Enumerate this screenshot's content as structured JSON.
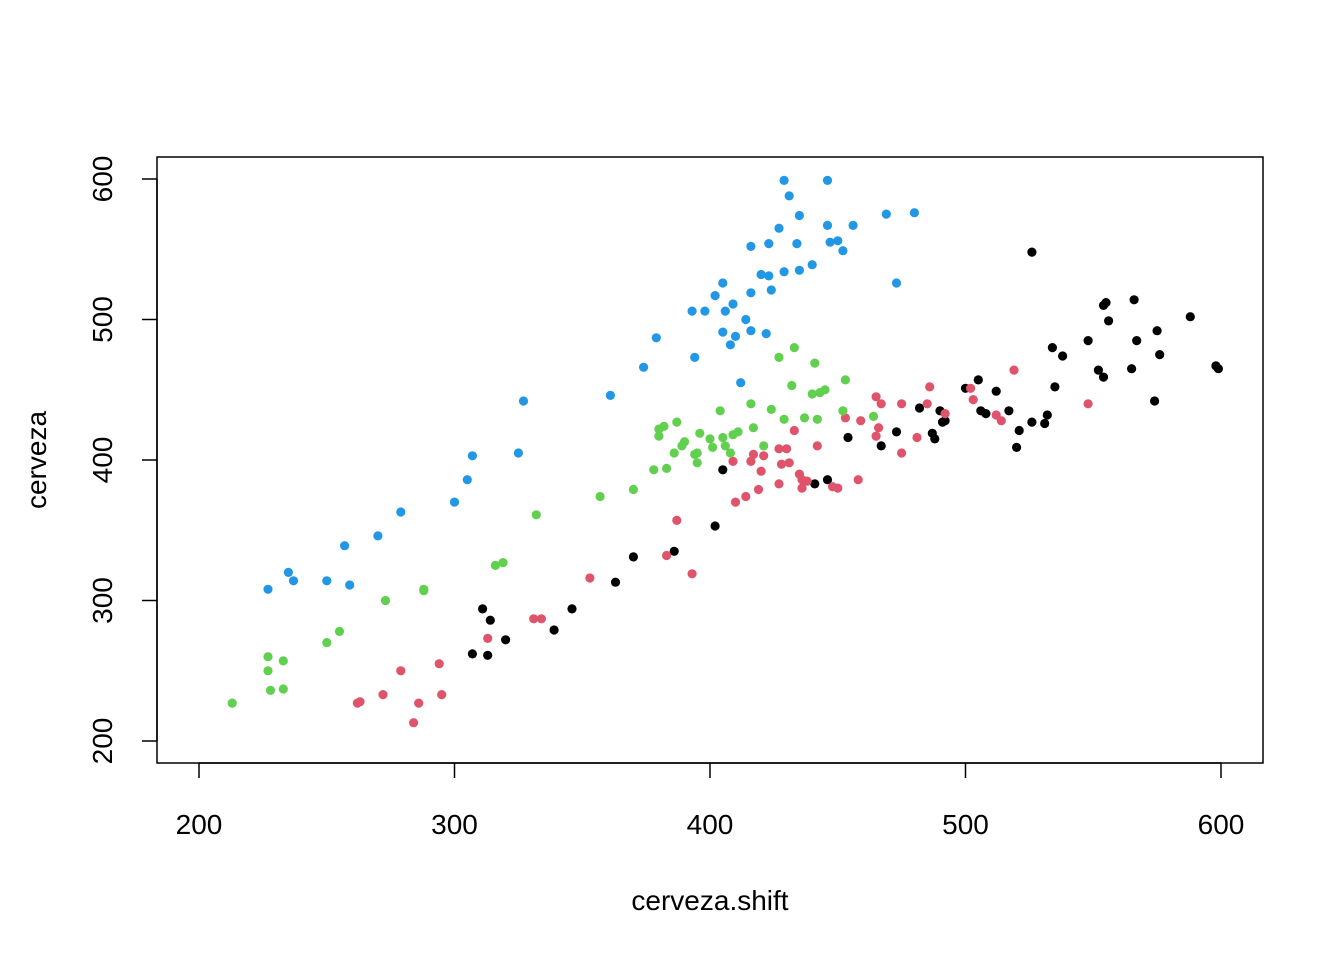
{
  "chart_data": {
    "type": "scatter",
    "title": "",
    "xlabel": "cerveza.shift",
    "ylabel": "cerveza",
    "xlim": [
      184,
      1618
    ],
    "ylim": [
      184,
      1620
    ],
    "grid": false,
    "legend": "none",
    "x_ticks": [
      200,
      300,
      400,
      500,
      600
    ],
    "y_ticks": [
      200,
      300,
      400,
      500,
      600
    ],
    "x_tick_labels": [
      "200",
      "300",
      "400",
      "500",
      "600"
    ],
    "y_tick_labels": [
      "200",
      "300",
      "400",
      "500",
      "600"
    ],
    "series": [
      {
        "color": "#000000",
        "points": [
          [
            311,
            294
          ],
          [
            314,
            286
          ],
          [
            307,
            262
          ],
          [
            313,
            261
          ],
          [
            320,
            272
          ],
          [
            339,
            279
          ],
          [
            346,
            294
          ],
          [
            363,
            313
          ],
          [
            370,
            331
          ],
          [
            386,
            335
          ],
          [
            402,
            353
          ],
          [
            405,
            393
          ],
          [
            441,
            383
          ],
          [
            446,
            386
          ],
          [
            454,
            416
          ],
          [
            467,
            410
          ],
          [
            473,
            420
          ],
          [
            482,
            437
          ],
          [
            487,
            419
          ],
          [
            488,
            415
          ],
          [
            490,
            435
          ],
          [
            491,
            427
          ],
          [
            492,
            428
          ],
          [
            500,
            451
          ],
          [
            505,
            457
          ],
          [
            506,
            435
          ],
          [
            508,
            433
          ],
          [
            512,
            449
          ],
          [
            517,
            435
          ],
          [
            520,
            409
          ],
          [
            521,
            421
          ],
          [
            526,
            427
          ],
          [
            526,
            548
          ],
          [
            531,
            426
          ],
          [
            532,
            432
          ],
          [
            534,
            480
          ],
          [
            535,
            452
          ],
          [
            538,
            474
          ],
          [
            548,
            485
          ],
          [
            552,
            464
          ],
          [
            554,
            459
          ],
          [
            554,
            510
          ],
          [
            555,
            512
          ],
          [
            556,
            499
          ],
          [
            565,
            465
          ],
          [
            566,
            514
          ],
          [
            567,
            485
          ],
          [
            574,
            442
          ],
          [
            575,
            492
          ],
          [
            576,
            475
          ],
          [
            588,
            502
          ],
          [
            598,
            467
          ],
          [
            599,
            465
          ]
        ]
      },
      {
        "color": "#DF536B",
        "points": [
          [
            262,
            227
          ],
          [
            263,
            228
          ],
          [
            272,
            233
          ],
          [
            279,
            250
          ],
          [
            284,
            213
          ],
          [
            286,
            227
          ],
          [
            294,
            255
          ],
          [
            295,
            233
          ],
          [
            313,
            273
          ],
          [
            331,
            287
          ],
          [
            334,
            287
          ],
          [
            353,
            316
          ],
          [
            383,
            332
          ],
          [
            387,
            357
          ],
          [
            393,
            319
          ],
          [
            409,
            399
          ],
          [
            410,
            370
          ],
          [
            414,
            374
          ],
          [
            416,
            399
          ],
          [
            417,
            404
          ],
          [
            419,
            379
          ],
          [
            420,
            392
          ],
          [
            421,
            403
          ],
          [
            427,
            383
          ],
          [
            427,
            408
          ],
          [
            428,
            397
          ],
          [
            430,
            408
          ],
          [
            431,
            398
          ],
          [
            433,
            421
          ],
          [
            435,
            390
          ],
          [
            436,
            386
          ],
          [
            436,
            380
          ],
          [
            438,
            385
          ],
          [
            442,
            410
          ],
          [
            448,
            381
          ],
          [
            450,
            380
          ],
          [
            453,
            430
          ],
          [
            458,
            386
          ],
          [
            459,
            428
          ],
          [
            465,
            417
          ],
          [
            465,
            445
          ],
          [
            466,
            423
          ],
          [
            467,
            440
          ],
          [
            475,
            405
          ],
          [
            475,
            440
          ],
          [
            481,
            416
          ],
          [
            485,
            440
          ],
          [
            486,
            452
          ],
          [
            492,
            433
          ],
          [
            502,
            451
          ],
          [
            503,
            443
          ],
          [
            512,
            432
          ],
          [
            514,
            428
          ],
          [
            519,
            464
          ],
          [
            548,
            440
          ]
        ]
      },
      {
        "color": "#61D04F",
        "points": [
          [
            213,
            227
          ],
          [
            227,
            260
          ],
          [
            227,
            250
          ],
          [
            228,
            236
          ],
          [
            233,
            257
          ],
          [
            233,
            237
          ],
          [
            250,
            270
          ],
          [
            255,
            278
          ],
          [
            273,
            300
          ],
          [
            288,
            307
          ],
          [
            288,
            308
          ],
          [
            316,
            325
          ],
          [
            319,
            327
          ],
          [
            332,
            361
          ],
          [
            357,
            374
          ],
          [
            370,
            379
          ],
          [
            378,
            393
          ],
          [
            380,
            417
          ],
          [
            380,
            422
          ],
          [
            382,
            424
          ],
          [
            383,
            394
          ],
          [
            386,
            405
          ],
          [
            387,
            427
          ],
          [
            389,
            410
          ],
          [
            390,
            413
          ],
          [
            394,
            404
          ],
          [
            395,
            405
          ],
          [
            395,
            398
          ],
          [
            396,
            419
          ],
          [
            400,
            415
          ],
          [
            401,
            409
          ],
          [
            404,
            435
          ],
          [
            405,
            416
          ],
          [
            406,
            410
          ],
          [
            408,
            405
          ],
          [
            409,
            418
          ],
          [
            411,
            420
          ],
          [
            416,
            440
          ],
          [
            417,
            423
          ],
          [
            421,
            410
          ],
          [
            424,
            436
          ],
          [
            427,
            473
          ],
          [
            429,
            429
          ],
          [
            432,
            453
          ],
          [
            433,
            480
          ],
          [
            437,
            430
          ],
          [
            440,
            447
          ],
          [
            441,
            469
          ],
          [
            442,
            429
          ],
          [
            443,
            448
          ],
          [
            445,
            450
          ],
          [
            452,
            435
          ],
          [
            453,
            457
          ],
          [
            464,
            431
          ]
        ]
      },
      {
        "color": "#2297E6",
        "points": [
          [
            227,
            308
          ],
          [
            235,
            320
          ],
          [
            237,
            314
          ],
          [
            250,
            314
          ],
          [
            257,
            339
          ],
          [
            259,
            311
          ],
          [
            270,
            346
          ],
          [
            279,
            363
          ],
          [
            300,
            370
          ],
          [
            305,
            386
          ],
          [
            307,
            403
          ],
          [
            325,
            405
          ],
          [
            327,
            442
          ],
          [
            361,
            446
          ],
          [
            374,
            466
          ],
          [
            379,
            487
          ],
          [
            393,
            506
          ],
          [
            394,
            473
          ],
          [
            398,
            506
          ],
          [
            402,
            517
          ],
          [
            405,
            526
          ],
          [
            405,
            491
          ],
          [
            406,
            506
          ],
          [
            408,
            482
          ],
          [
            409,
            511
          ],
          [
            410,
            488
          ],
          [
            412,
            455
          ],
          [
            414,
            500
          ],
          [
            416,
            519
          ],
          [
            416,
            492
          ],
          [
            416,
            552
          ],
          [
            420,
            532
          ],
          [
            422,
            490
          ],
          [
            423,
            531
          ],
          [
            423,
            554
          ],
          [
            424,
            521
          ],
          [
            427,
            565
          ],
          [
            429,
            599
          ],
          [
            429,
            534
          ],
          [
            431,
            588
          ],
          [
            434,
            554
          ],
          [
            435,
            574
          ],
          [
            435,
            535
          ],
          [
            440,
            539
          ],
          [
            446,
            567
          ],
          [
            446,
            599
          ],
          [
            447,
            555
          ],
          [
            450,
            556
          ],
          [
            452,
            549
          ],
          [
            456,
            567
          ],
          [
            469,
            575
          ],
          [
            473,
            526
          ],
          [
            480,
            576
          ]
        ]
      }
    ]
  }
}
